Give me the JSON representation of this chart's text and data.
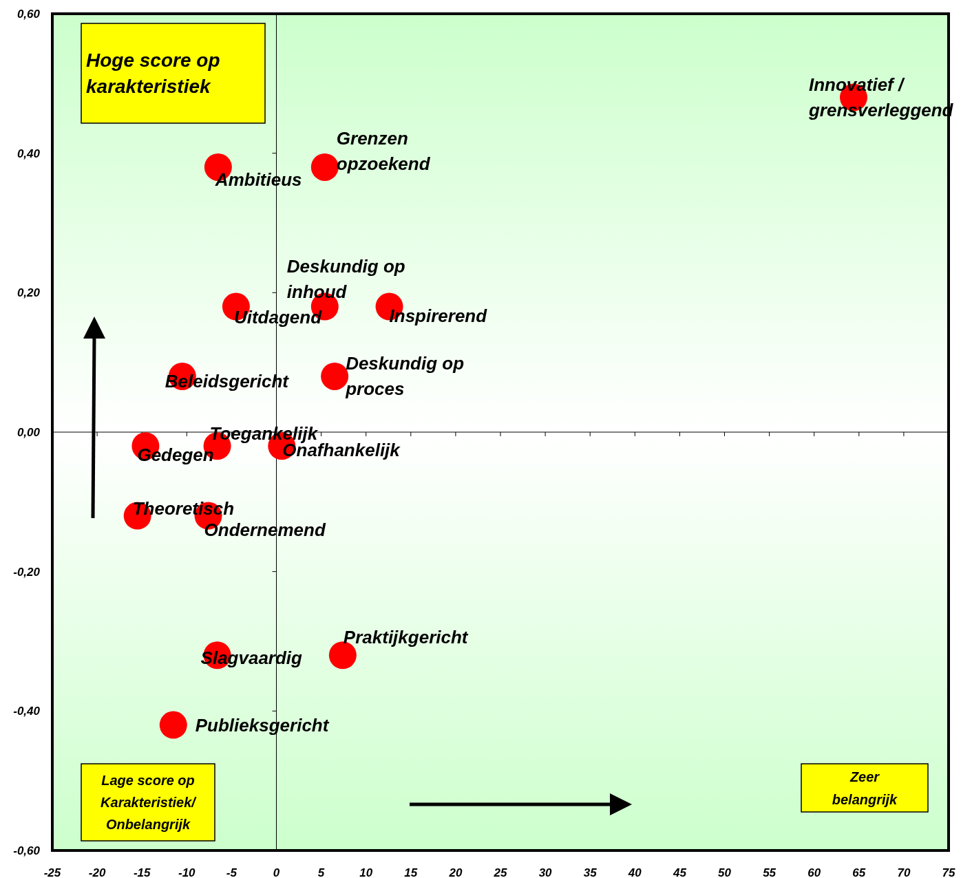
{
  "chart_data": {
    "type": "scatter",
    "x": [
      64.4,
      -6.5,
      5.4,
      -4.5,
      5.4,
      12.6,
      -10.5,
      6.5,
      -14.6,
      -6.6,
      0.6,
      -15.5,
      -7.6,
      -6.6,
      7.4,
      -11.5
    ],
    "values": [
      0.48,
      0.38,
      0.38,
      0.18,
      0.18,
      0.18,
      0.08,
      0.08,
      -0.02,
      -0.02,
      -0.02,
      -0.12,
      -0.12,
      -0.32,
      -0.32,
      -0.42
    ],
    "color": "#ff0000",
    "marker": "circle",
    "xlim": [
      -25,
      75
    ],
    "xticks": [
      -25,
      -20,
      -15,
      -10,
      -5,
      0,
      5,
      10,
      15,
      20,
      25,
      30,
      35,
      40,
      45,
      50,
      55,
      60,
      65,
      70,
      75
    ],
    "ylim": [
      -0.6,
      0.6
    ],
    "yticks": [
      {
        "value": -0.6,
        "label": "-0,60"
      },
      {
        "value": -0.4,
        "label": "-0,40"
      },
      {
        "value": -0.2,
        "label": "-0,20"
      },
      {
        "value": 0,
        "label": "0,00"
      },
      {
        "value": 0.2,
        "label": "0,20"
      },
      {
        "value": 0.4,
        "label": "0,40"
      },
      {
        "value": 0.6,
        "label": "0,60"
      }
    ],
    "annotations": [
      {
        "text": "Innovatief /\ngrensverleggend",
        "x": 64.4,
        "y": 0.48
      },
      {
        "text": "Ambitieus",
        "x": -6.5,
        "y": 0.38
      },
      {
        "text": "Grenzen\nopzoekend",
        "x": 5.4,
        "y": 0.38
      },
      {
        "text": "Uitdagend",
        "x": -4.5,
        "y": 0.18
      },
      {
        "text": "Deskundig op\ninhoud",
        "x": 5.4,
        "y": 0.18
      },
      {
        "text": "Inspirerend",
        "x": 12.6,
        "y": 0.18
      },
      {
        "text": "Beleidsgericht",
        "x": -10.5,
        "y": 0.08
      },
      {
        "text": "Deskundig op\nproces",
        "x": 6.5,
        "y": 0.08
      },
      {
        "text": "Gedegen",
        "x": -14.6,
        "y": -0.02
      },
      {
        "text": "Toegankelijk",
        "x": -6.6,
        "y": -0.02
      },
      {
        "text": "Onafhankelijk",
        "x": 0.6,
        "y": -0.02
      },
      {
        "text": "Theoretisch",
        "x": -15.5,
        "y": -0.12
      },
      {
        "text": "Ondernemend",
        "x": -7.6,
        "y": -0.12
      },
      {
        "text": "Slagvaardig",
        "x": -6.6,
        "y": -0.32
      },
      {
        "text": "Praktijkgericht",
        "x": 7.4,
        "y": -0.32
      },
      {
        "text": "Publieksgericht",
        "x": -11.5,
        "y": -0.42
      },
      "Hoge score op\nkarakteristiek",
      "Lage score op\nKarakteristiek/\nOnbelangrijk",
      "Zeer\nbelangrijk"
    ]
  }
}
